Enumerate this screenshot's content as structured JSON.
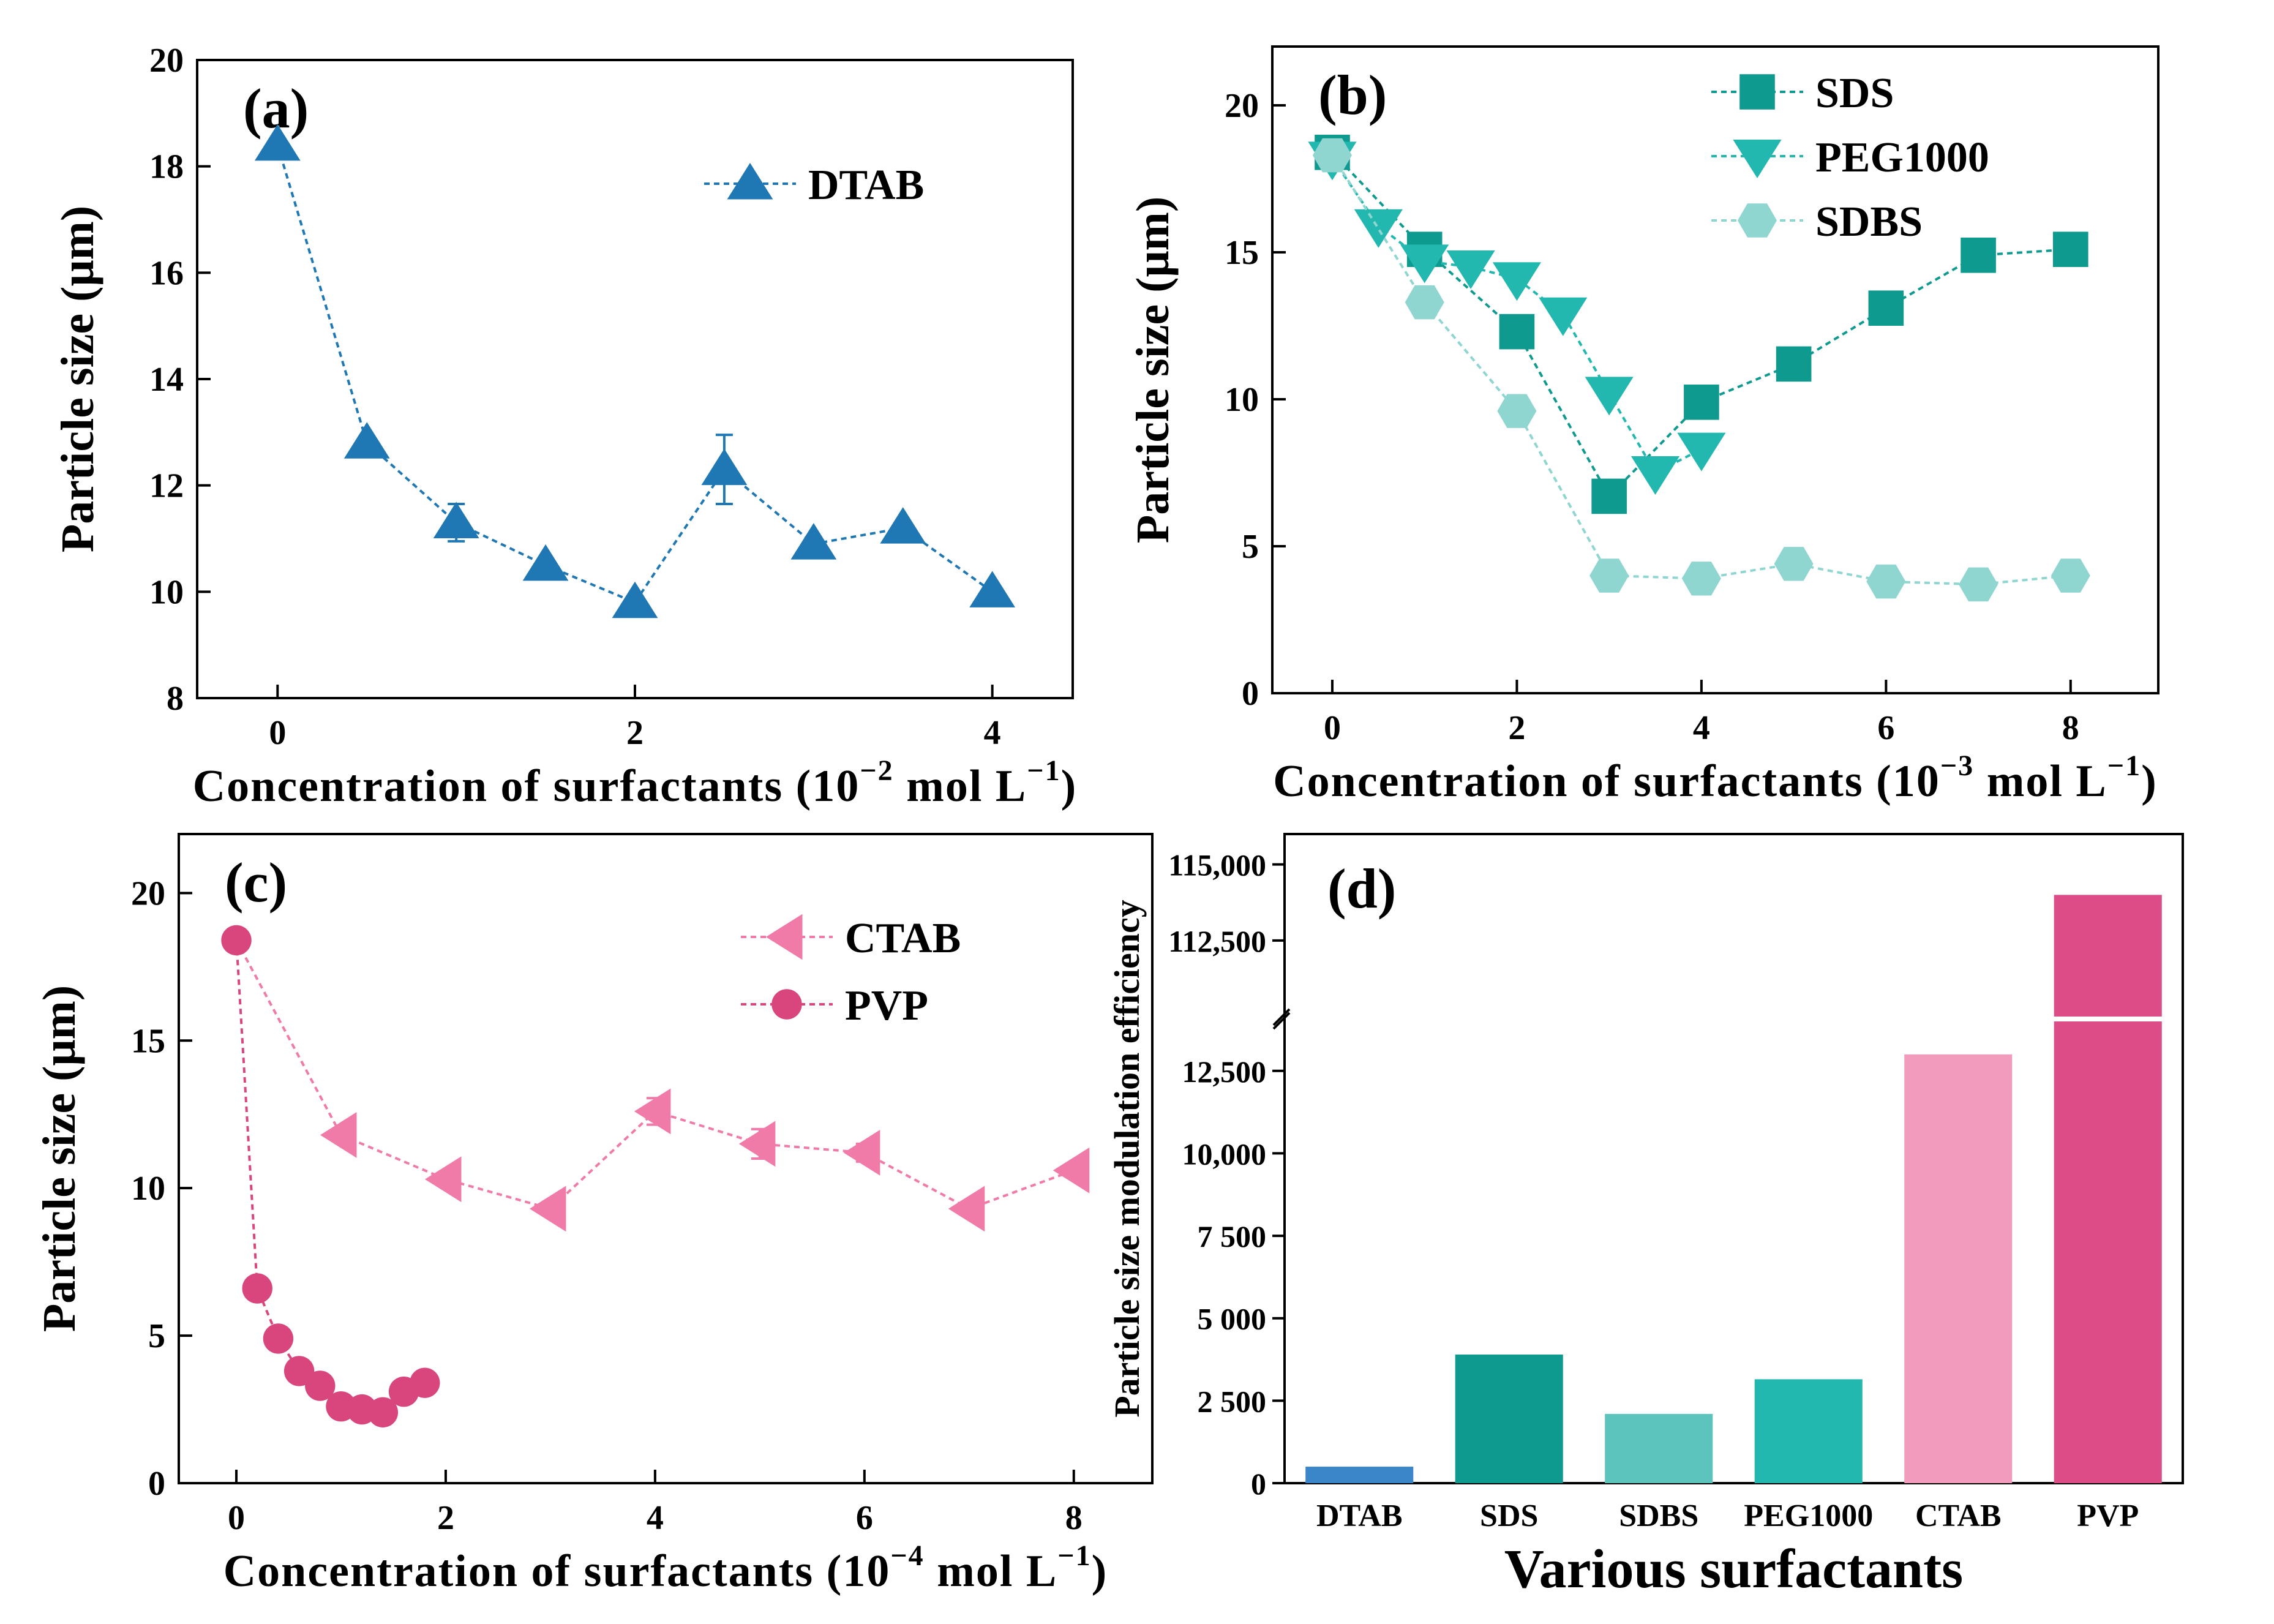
{
  "chart_data": [
    {
      "id": "a",
      "type": "line",
      "panel_label": "(a)",
      "xlabel": "Concentration of surfactants (10",
      "xlabel_exp": "−2",
      "xlabel_tail": " mol L",
      "xlabel_exp2": "−1",
      "xlabel_end": ")",
      "ylabel": "Particle size (μm)",
      "xlim": [
        -0.45,
        4.45
      ],
      "ylim": [
        8,
        20
      ],
      "xticks": [
        0,
        2,
        4
      ],
      "yticks": [
        8,
        10,
        12,
        14,
        16,
        18,
        20
      ],
      "legend_position": "top-right",
      "series": [
        {
          "name": "DTAB",
          "marker": "triangle-up",
          "color": "#1f78b4",
          "x": [
            0,
            0.5,
            1,
            1.5,
            2,
            2.5,
            3,
            3.5,
            4
          ],
          "y": [
            18.4,
            12.8,
            11.3,
            10.5,
            9.8,
            12.3,
            10.9,
            11.2,
            10.0
          ],
          "err": [
            0.1,
            0.1,
            0.35,
            0.1,
            0.1,
            0.65,
            0.1,
            0.1,
            0.1
          ]
        }
      ]
    },
    {
      "id": "b",
      "type": "line",
      "panel_label": "(b)",
      "xlabel": "Concentration of surfactants (10",
      "xlabel_exp": "−3",
      "xlabel_tail": " mol L",
      "xlabel_exp2": "−1",
      "xlabel_end": ")",
      "ylabel": "Particle size (μm)",
      "xlim": [
        -0.65,
        8.95
      ],
      "ylim": [
        0,
        22
      ],
      "xticks": [
        0,
        2,
        4,
        6,
        8
      ],
      "yticks": [
        0,
        5,
        10,
        15,
        20
      ],
      "legend_position": "top-right",
      "series": [
        {
          "name": "SDS",
          "marker": "square",
          "color": "#0e9a8e",
          "x": [
            0,
            1,
            2,
            3,
            4,
            5,
            6,
            7,
            8
          ],
          "y": [
            18.4,
            15.1,
            12.3,
            6.7,
            9.9,
            11.2,
            13.1,
            14.9,
            15.1
          ]
        },
        {
          "name": "PEG1000",
          "marker": "triangle-down",
          "color": "#22b8b0",
          "x": [
            0,
            0.5,
            1,
            1.5,
            2,
            2.5,
            3,
            3.5,
            4
          ],
          "y": [
            18.2,
            15.9,
            14.7,
            14.5,
            14.1,
            12.9,
            10.2,
            7.5,
            8.3
          ]
        },
        {
          "name": "SDBS",
          "marker": "hexagon",
          "color": "#8fd5d0",
          "x": [
            0,
            1,
            2,
            3,
            4,
            5,
            6,
            7,
            8
          ],
          "y": [
            18.3,
            13.3,
            9.6,
            4.0,
            3.9,
            4.4,
            3.8,
            3.7,
            4.0
          ]
        }
      ]
    },
    {
      "id": "c",
      "type": "line",
      "panel_label": "(c)",
      "xlabel": "Concentration of surfactants (10",
      "xlabel_exp": "−4",
      "xlabel_tail": " mol L",
      "xlabel_exp2": "−1",
      "xlabel_end": ")",
      "ylabel": "Particle size (μm)",
      "xlim": [
        -0.55,
        8.75
      ],
      "ylim": [
        0,
        22
      ],
      "xticks": [
        0,
        2,
        4,
        6,
        8
      ],
      "yticks": [
        0,
        5,
        10,
        15,
        20
      ],
      "legend_position": "top-right",
      "series": [
        {
          "name": "CTAB",
          "marker": "triangle-left",
          "color": "#f07aa8",
          "x": [
            1,
            2,
            3,
            4,
            5,
            6,
            7,
            8
          ],
          "y": [
            11.8,
            10.3,
            9.3,
            12.6,
            11.5,
            11.2,
            9.3,
            10.6
          ],
          "err": [
            0.15,
            0.1,
            0.1,
            0.45,
            0.5,
            0.3,
            0.1,
            0.1
          ]
        },
        {
          "name": "PVP",
          "marker": "circle",
          "color": "#d9467e",
          "x": [
            0,
            0.2,
            0.4,
            0.6,
            0.8,
            1.0,
            1.2,
            1.4,
            1.6,
            1.8
          ],
          "y": [
            18.4,
            6.6,
            4.9,
            3.8,
            3.3,
            2.6,
            2.5,
            2.4,
            3.1,
            3.4
          ],
          "err": [
            0.15,
            0.35,
            0.1,
            0.1,
            0.1,
            0.1,
            0.1,
            0.1,
            0.1,
            0.1
          ]
        },
        {
          "name": "",
          "connect_from_pvp_start": true
        }
      ]
    },
    {
      "id": "d",
      "type": "bar",
      "panel_label": "(d)",
      "xlabel": "Various surfactants",
      "ylabel": "Particle size modulation efficiency",
      "categories": [
        "DTAB",
        "SDS",
        "SDBS",
        "PEG1000",
        "CTAB",
        "PVP"
      ],
      "values": [
        500,
        3900,
        2100,
        3150,
        13000,
        114000
      ],
      "colors": [
        "#3a86c8",
        "#0e9a8e",
        "#5cc4bd",
        "#22b8b0",
        "#f29bbc",
        "#dc4c86"
      ],
      "ylim_lower": [
        0,
        14000
      ],
      "ylim_upper": [
        110000,
        116000
      ],
      "yticks_lower": [
        0,
        2500,
        5000,
        7500,
        10000,
        12500
      ],
      "ytick_labels_lower": [
        "0",
        "2 500",
        "5 000",
        "7 500",
        "10,000",
        "12,500"
      ],
      "yticks_upper": [
        112500,
        115000
      ],
      "ytick_labels_upper": [
        "112,500",
        "115,000"
      ],
      "axis_break": true
    }
  ]
}
